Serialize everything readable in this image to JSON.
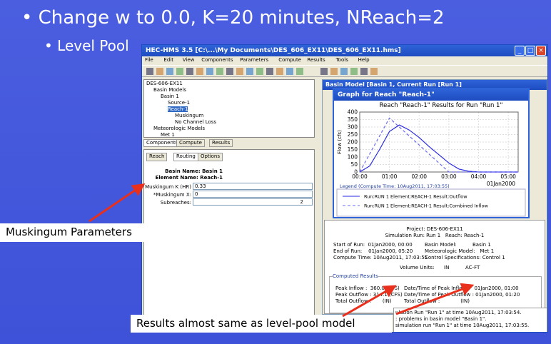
{
  "slide": {
    "bullets": [
      "Change w to 0.0, K=20 minutes, NReach=2",
      "Level Pool"
    ],
    "callouts": [
      "Muskingum Parameters",
      "Results almost same as level-pool model"
    ]
  },
  "window": {
    "title": "HEC-HMS 3.5 [C:\\...\\My Documents\\DES_606_EX11\\DES_606_EX11.hms]",
    "menu": [
      "File",
      "Edit",
      "View",
      "Components",
      "Parameters",
      "Compute",
      "Results",
      "Tools",
      "Help"
    ]
  },
  "tree": [
    "DES-606-EX11",
    "Basin Models",
    "Basin 1",
    "Source-1",
    "Reach-1",
    "Muskingum",
    "No Channel Loss",
    "Meteorologic Models",
    "Met 1"
  ],
  "panel_tabs": [
    "Components",
    "Compute",
    "Results"
  ],
  "editor_tabs": [
    "Reach",
    "Routing",
    "Options"
  ],
  "editor": {
    "basin": "Basin Name: Basin 1",
    "element": "Element Name: Reach-1",
    "fields": [
      {
        "label": "Muskingum K (HR)",
        "value": "0.33"
      },
      {
        "label": "*Muskingum X:",
        "value": "0"
      },
      {
        "label": "Subreaches:",
        "value": "2"
      }
    ]
  },
  "basin_window_title": "Basin Model [Basin 1, Current Run [Run 1]",
  "graph": {
    "window_title": "Graph for Reach \"Reach-1\"",
    "title": "Reach \"Reach-1\" Results for Run \"Run 1\"",
    "ylabel": "Flow (cfs)",
    "date": "01Jan2000",
    "x": [
      "00:00",
      "00:20",
      "00:40",
      "01:00",
      "01:20",
      "01:40",
      "02:00",
      "02:20",
      "02:40",
      "03:00",
      "03:20",
      "03:40",
      "04:00",
      "04:20",
      "04:40",
      "05:00",
      "05:20"
    ],
    "series": [
      {
        "name": "Run:RUN 1 Element:REACH-1 Result:Outflow",
        "color": "#2a2ae0",
        "dash": false,
        "values": [
          0,
          40,
          150,
          270,
          314,
          280,
          230,
          170,
          115,
          60,
          20,
          5,
          0,
          0,
          0,
          0,
          0
        ]
      },
      {
        "name": "Run:RUN 1 Element:REACH-1 Result:Combined Inflow",
        "color": "#6a6af0",
        "dash": true,
        "values": [
          0,
          120,
          240,
          360,
          300,
          240,
          180,
          120,
          60,
          0,
          0,
          0,
          0,
          0,
          0,
          0,
          0
        ]
      }
    ],
    "xlim": [
      "00:00",
      "05:20"
    ],
    "xticks": [
      "00:00",
      "01:00",
      "02:00",
      "03:00",
      "04:00",
      "05:00"
    ],
    "ylim": [
      0,
      400
    ],
    "yticks": [
      0,
      50,
      100,
      150,
      200,
      250,
      300,
      350,
      400
    ],
    "grid": true,
    "legend_title": "Legend (Compute Time: 10Aug2011, 17:03:55)"
  },
  "summary": {
    "project": "Project: DES-606-EX11",
    "run": "Simulation Run: Run 1   Reach: Reach-1",
    "rows": [
      [
        "Start of Run:  01Jan2000, 00:00",
        "Basin Model:          Basin 1"
      ],
      [
        "End of Run:    01Jan2000, 05:20",
        "Meteorologic Model:   Met 1"
      ],
      [
        "Compute Time: 10Aug2011, 17:03:55",
        "Control Specifications: Control 1"
      ]
    ],
    "units_label": "Volume Units:",
    "units": [
      "IN",
      "AC-FT"
    ],
    "results_title": "Computed Results",
    "results": [
      [
        "Peak Inflow :  360.0 (CFS)",
        "Date/Time of Peak Inflow :   01Jan2000, 01:00"
      ],
      [
        "Peak Outflow : 314.1 (CFS)",
        "Date/Time of Peak Outflow : 01Jan2000, 01:20"
      ],
      [
        "Total Outflow :       (IN)",
        "Total Outflow :             (IN)"
      ]
    ]
  },
  "messages": [
    "ulation Run \"Run 1\" at time 10Aug2011, 17:03:54.",
    ": problems in basin model \"Basin 1\".",
    "simulation run \"Run 1\" at time 10Aug2011, 17:03:55."
  ]
}
